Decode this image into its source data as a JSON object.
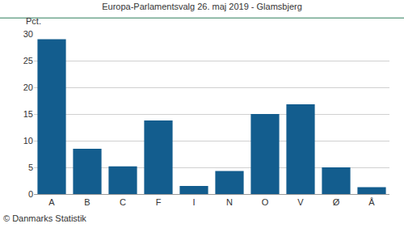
{
  "chart_data": {
    "type": "bar",
    "title": "Europa-Parlamentsvalg 26. maj 2019 - Glamsbjerg",
    "y_label": "Pct.",
    "annotations": [
      "© Danmarks Statistik"
    ],
    "categories": [
      "A",
      "B",
      "C",
      "F",
      "I",
      "N",
      "O",
      "V",
      "Ø",
      "Å"
    ],
    "values": [
      29.0,
      8.5,
      5.2,
      13.8,
      1.5,
      4.3,
      15.0,
      16.8,
      5.0,
      1.3
    ],
    "color": "#135d8e",
    "ylim": [
      0,
      30
    ],
    "yticks": [
      0,
      5,
      10,
      15,
      20,
      25,
      30
    ],
    "grid": true
  }
}
